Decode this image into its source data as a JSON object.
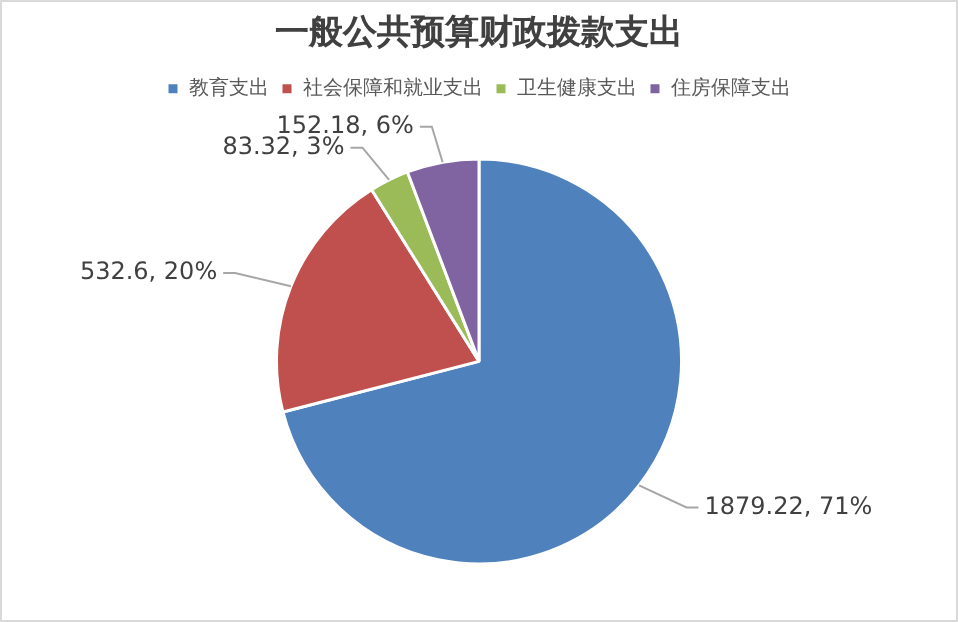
{
  "chart_data": {
    "type": "pie",
    "title": "一般公共预算财政拨款支出",
    "categories": [
      "教育支出",
      "社会保障和就业支出",
      "卫生健康支出",
      "住房保障支出"
    ],
    "values": [
      1879.22,
      532.6,
      83.32,
      152.18
    ],
    "colors": [
      "#4f81bd",
      "#c0504d",
      "#9bbb59",
      "#8064a2"
    ],
    "value_labels": [
      "1879.22, 71%",
      "532.6, 20%",
      "83.32, 3%",
      "152.18, 6%"
    ],
    "legend": "top"
  }
}
